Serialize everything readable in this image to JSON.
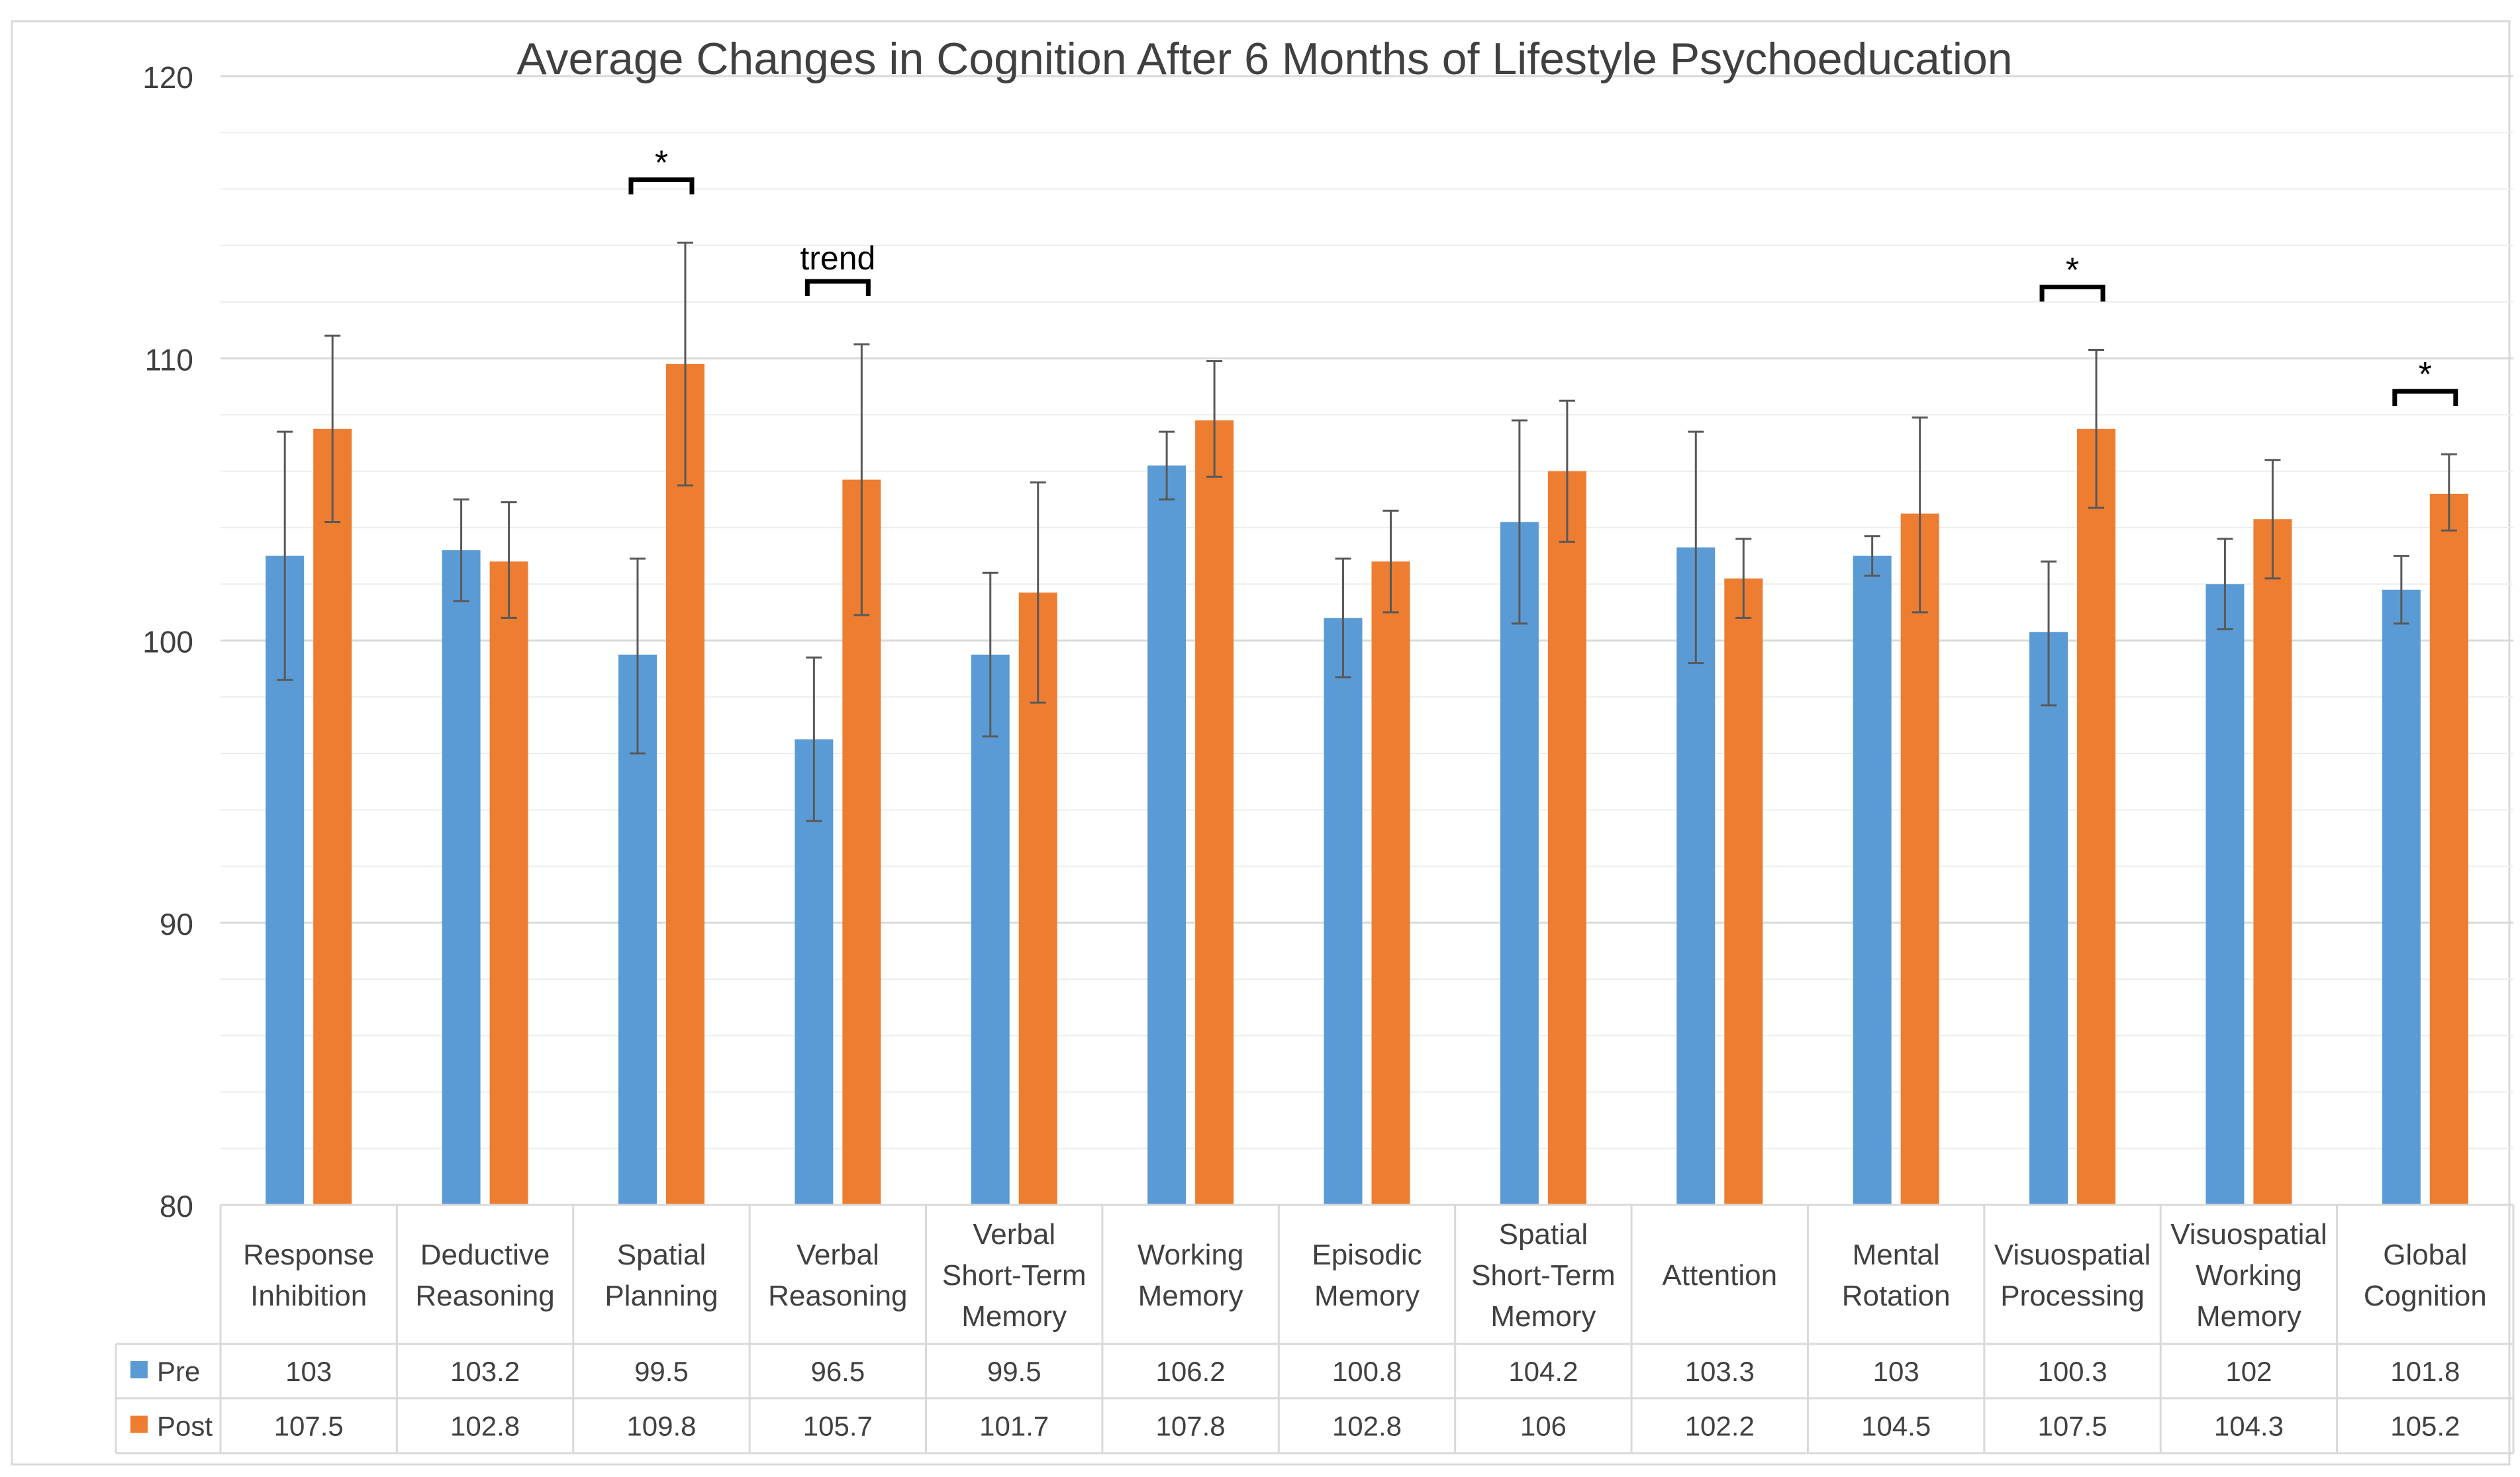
{
  "chart_data": {
    "type": "bar",
    "title": "Average Changes in Cognition After 6 Months of Lifestyle Psychoeducation",
    "ylim": [
      80,
      120
    ],
    "y_ticks": [
      "80",
      "90",
      "100",
      "110",
      "120"
    ],
    "grid": true,
    "categories": [
      [
        "Response",
        "Inhibition"
      ],
      [
        "Deductive",
        "Reasoning"
      ],
      [
        "Spatial",
        "Planning"
      ],
      [
        "Verbal",
        "Reasoning"
      ],
      [
        "Verbal",
        "Short-Term",
        "Memory"
      ],
      [
        "Working",
        "Memory"
      ],
      [
        "Episodic",
        "Memory"
      ],
      [
        "Spatial",
        "Short-Term",
        "Memory"
      ],
      [
        "Attention"
      ],
      [
        "Mental",
        "Rotation"
      ],
      [
        "Visuospatial",
        "Processing"
      ],
      [
        "Visuospatial",
        "Working",
        "Memory"
      ],
      [
        "Global",
        "Cognition"
      ]
    ],
    "series": [
      {
        "name": "Pre",
        "color": "#5b9bd5",
        "values": [
          103,
          103.2,
          99.5,
          96.5,
          99.5,
          106.2,
          100.8,
          104.2,
          103.3,
          103,
          100.3,
          102,
          101.8
        ],
        "labels": [
          "103",
          "103.2",
          "99.5",
          "96.5",
          "99.5",
          "106.2",
          "100.8",
          "104.2",
          "103.3",
          "103",
          "100.3",
          "102",
          "101.8"
        ],
        "err_low": [
          98.6,
          101.4,
          96.0,
          93.6,
          96.6,
          105.0,
          98.7,
          100.6,
          99.2,
          102.3,
          97.7,
          100.4,
          100.6
        ],
        "err_high": [
          107.4,
          105.0,
          102.9,
          99.4,
          102.4,
          107.4,
          102.9,
          107.8,
          107.4,
          103.7,
          102.8,
          103.6,
          103.0
        ]
      },
      {
        "name": "Post",
        "color": "#ed7d31",
        "values": [
          107.5,
          102.8,
          109.8,
          105.7,
          101.7,
          107.8,
          102.8,
          106,
          102.2,
          104.5,
          107.5,
          104.3,
          105.2
        ],
        "labels": [
          "107.5",
          "102.8",
          "109.8",
          "105.7",
          "101.7",
          "107.8",
          "102.8",
          "106",
          "102.2",
          "104.5",
          "107.5",
          "104.3",
          "105.2"
        ],
        "err_low": [
          104.2,
          100.8,
          105.5,
          100.9,
          97.8,
          105.8,
          101.0,
          103.5,
          100.8,
          101.0,
          104.7,
          102.2,
          103.9
        ],
        "err_high": [
          110.8,
          104.9,
          114.1,
          110.5,
          105.6,
          109.9,
          104.6,
          108.5,
          103.6,
          107.9,
          110.3,
          106.4,
          106.6
        ]
      }
    ],
    "annotations": [
      {
        "category_index": 2,
        "text": "*"
      },
      {
        "category_index": 3,
        "text": "trend"
      },
      {
        "category_index": 10,
        "text": "*"
      },
      {
        "category_index": 12,
        "text": "*"
      }
    ]
  }
}
